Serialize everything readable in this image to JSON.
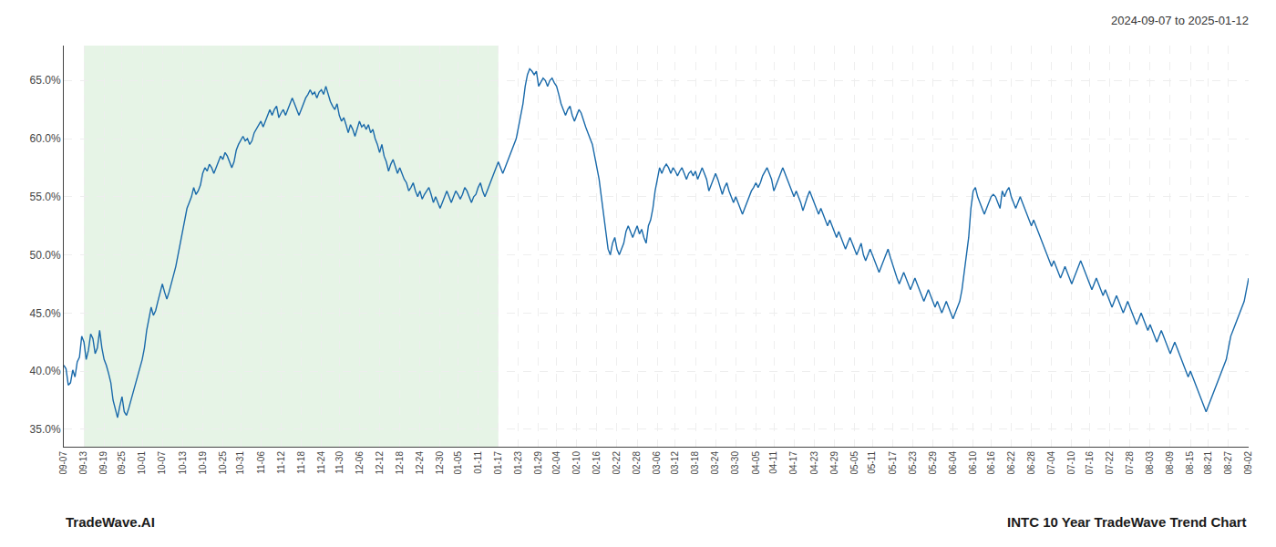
{
  "chart_data": {
    "type": "line",
    "title": "2024-09-07 to 2025-01-12",
    "annotations": [
      "TradeWave.AI",
      "INTC 10 Year TradeWave Trend Chart"
    ],
    "color": "#1a6aaa",
    "grid": true,
    "highlight": {
      "start": "09-13",
      "end": "01-17",
      "color": "#c8e6c8"
    },
    "ylim": [
      33.5,
      68.0
    ],
    "yticks": [
      {
        "value": 35.0,
        "label": "35.0%"
      },
      {
        "value": 40.0,
        "label": "40.0%"
      },
      {
        "value": 45.0,
        "label": "45.0%"
      },
      {
        "value": 50.0,
        "label": "50.0%"
      },
      {
        "value": 55.0,
        "label": "55.0%"
      },
      {
        "value": 60.0,
        "label": "60.0%"
      },
      {
        "value": 65.0,
        "label": "65.0%"
      }
    ],
    "categories": [
      "09-07",
      null,
      null,
      null,
      null,
      null,
      null,
      null,
      null,
      "09-13",
      null,
      null,
      null,
      null,
      null,
      null,
      null,
      null,
      "09-19",
      null,
      null,
      null,
      null,
      null,
      null,
      null,
      "09-25",
      null,
      null,
      null,
      null,
      null,
      null,
      null,
      null,
      "10-01",
      null,
      null,
      null,
      null,
      null,
      null,
      null,
      null,
      "10-07",
      null,
      null,
      null,
      null,
      null,
      null,
      null,
      null,
      "10-13",
      null,
      null,
      null,
      null,
      null,
      null,
      null,
      null,
      "10-19",
      null,
      null,
      null,
      null,
      null,
      null,
      null,
      null,
      "10-25",
      null,
      null,
      null,
      null,
      null,
      null,
      null,
      "10-31",
      null,
      null,
      null,
      null,
      null,
      null,
      null,
      null,
      "11-06",
      null,
      null,
      null,
      null,
      null,
      null,
      null,
      null,
      "11-12",
      null,
      null,
      null,
      null,
      null,
      null,
      null,
      null,
      "11-18",
      null,
      null,
      null,
      null,
      null,
      null,
      null,
      null,
      "11-24",
      null,
      null,
      null,
      null,
      null,
      null,
      null,
      "11-30",
      null,
      null,
      null,
      null,
      null,
      null,
      null,
      null,
      "12-06",
      null,
      null,
      null,
      null,
      null,
      null,
      null,
      null,
      "12-12",
      null,
      null,
      null,
      null,
      null,
      null,
      null,
      null,
      "12-18",
      null,
      null,
      null,
      null,
      null,
      null,
      null,
      null,
      "12-24",
      null,
      null,
      null,
      null,
      null,
      null,
      null,
      null,
      "12-30",
      null,
      null,
      null,
      null,
      null,
      null,
      null,
      "01-05",
      null,
      null,
      null,
      null,
      null,
      null,
      null,
      null,
      "01-11",
      null,
      null,
      null,
      null,
      null,
      null,
      null,
      null,
      "01-17",
      null,
      null,
      null,
      null,
      null,
      null,
      null,
      null,
      "01-23",
      null,
      null,
      null,
      null,
      null,
      null,
      null,
      null,
      "01-29",
      null,
      null,
      null,
      null,
      null,
      null,
      null,
      "02-04",
      null,
      null,
      null,
      null,
      null,
      null,
      null,
      null,
      "02-10",
      null,
      null,
      null,
      null,
      null,
      null,
      null,
      null,
      "02-16",
      null,
      null,
      null,
      null,
      null,
      null,
      null,
      null,
      "02-22",
      null,
      null,
      null,
      null,
      null,
      null,
      null,
      null,
      "02-28",
      null,
      null,
      null,
      null,
      null,
      null,
      null,
      null,
      "03-06",
      null,
      null,
      null,
      null,
      null,
      null,
      null,
      "03-12",
      null,
      null,
      null,
      null,
      null,
      null,
      null,
      null,
      "03-18",
      null,
      null,
      null,
      null,
      null,
      null,
      null,
      null,
      "03-24",
      null,
      null,
      null,
      null,
      null,
      null,
      null,
      null,
      "03-30",
      null,
      null,
      null,
      null,
      null,
      null,
      null,
      null,
      "04-05",
      null,
      null,
      null,
      null,
      null,
      null,
      null,
      "04-11",
      null,
      null,
      null,
      null,
      null,
      null,
      null,
      null,
      "04-17",
      null,
      null,
      null,
      null,
      null,
      null,
      null,
      null,
      "04-23",
      null,
      null,
      null,
      null,
      null,
      null,
      null,
      null,
      "04-29",
      null,
      null,
      null,
      null,
      null,
      null,
      null,
      null,
      "05-05",
      null,
      null,
      null,
      null,
      null,
      null,
      null,
      "05-11",
      null,
      null,
      null,
      null,
      null,
      null,
      null,
      null,
      "05-17",
      null,
      null,
      null,
      null,
      null,
      null,
      null,
      null,
      "05-23",
      null,
      null,
      null,
      null,
      null,
      null,
      null,
      null,
      "05-29",
      null,
      null,
      null,
      null,
      null,
      null,
      null,
      null,
      "06-04",
      null,
      null,
      null,
      null,
      null,
      null,
      null,
      null,
      "06-10",
      null,
      null,
      null,
      null,
      null,
      null,
      null,
      "06-16",
      null,
      null,
      null,
      null,
      null,
      null,
      null,
      null,
      "06-22",
      null,
      null,
      null,
      null,
      null,
      null,
      null,
      null,
      "06-28",
      null,
      null,
      null,
      null,
      null,
      null,
      null,
      null,
      "07-04",
      null,
      null,
      null,
      null,
      null,
      null,
      null,
      null,
      "07-10",
      null,
      null,
      null,
      null,
      null,
      null,
      null,
      "07-16",
      null,
      null,
      null,
      null,
      null,
      null,
      null,
      null,
      "07-22",
      null,
      null,
      null,
      null,
      null,
      null,
      null,
      null,
      "07-28",
      null,
      null,
      null,
      null,
      null,
      null,
      null,
      null,
      "08-03",
      null,
      null,
      null,
      null,
      null,
      null,
      null,
      null,
      "08-09",
      null,
      null,
      null,
      null,
      null,
      null,
      null,
      null,
      "08-15",
      null,
      null,
      null,
      null,
      null,
      null,
      null,
      "08-21",
      null,
      null,
      null,
      null,
      null,
      null,
      null,
      null,
      "08-27",
      null,
      null,
      null,
      null,
      null,
      null,
      null,
      null,
      "09-02"
    ],
    "values": [
      40.5,
      40.2,
      38.8,
      39.0,
      40.1,
      39.5,
      40.8,
      41.2,
      43.0,
      42.5,
      41.0,
      41.8,
      43.2,
      42.8,
      41.5,
      42.0,
      43.5,
      42.0,
      41.0,
      40.5,
      39.8,
      39.0,
      37.5,
      36.8,
      36.0,
      37.0,
      37.8,
      36.5,
      36.2,
      36.8,
      37.5,
      38.0,
      38.8,
      39.5,
      40.2,
      41.0,
      42.0,
      43.5,
      44.5,
      45.5,
      44.8,
      45.2,
      46.0,
      46.8,
      47.5,
      46.8,
      46.2,
      46.8,
      47.5,
      48.2,
      49.0,
      50.0,
      51.0,
      52.0,
      53.0,
      54.0,
      54.5,
      55.0,
      55.8,
      55.2,
      55.5,
      56.0,
      57.0,
      57.5,
      57.2,
      57.8,
      57.5,
      57.0,
      57.5,
      58.0,
      58.5,
      58.2,
      58.8,
      58.5,
      58.0,
      57.5,
      58.0,
      59.0,
      59.5,
      59.8,
      60.2,
      59.8,
      60.0,
      59.5,
      59.8,
      60.5,
      60.8,
      61.2,
      61.5,
      61.0,
      61.5,
      62.0,
      62.5,
      62.0,
      62.5,
      62.8,
      61.8,
      62.2,
      62.5,
      62.0,
      62.5,
      63.0,
      63.5,
      63.0,
      62.5,
      62.0,
      62.5,
      63.0,
      63.5,
      63.8,
      64.2,
      63.8,
      64.0,
      63.5,
      64.0,
      64.2,
      63.8,
      64.5,
      63.8,
      63.2,
      62.8,
      62.5,
      63.0,
      62.0,
      61.5,
      61.8,
      61.2,
      60.5,
      61.2,
      60.8,
      60.2,
      60.8,
      61.5,
      61.0,
      61.2,
      60.8,
      61.2,
      60.5,
      60.8,
      60.0,
      59.5,
      58.8,
      59.5,
      58.5,
      58.0,
      57.2,
      57.8,
      58.2,
      57.5,
      57.0,
      57.5,
      57.0,
      56.5,
      56.2,
      55.5,
      55.8,
      56.2,
      55.5,
      55.0,
      55.5,
      54.8,
      55.2,
      55.5,
      55.8,
      55.2,
      54.5,
      55.0,
      54.5,
      54.0,
      54.5,
      55.0,
      55.5,
      55.0,
      54.5,
      55.0,
      55.5,
      55.2,
      54.8,
      55.2,
      55.8,
      55.5,
      55.0,
      54.5,
      55.0,
      55.2,
      55.8,
      56.2,
      55.5,
      55.0,
      55.5,
      56.0,
      56.5,
      57.0,
      57.5,
      58.0,
      57.5,
      57.0,
      57.5,
      58.0,
      58.5,
      59.0,
      59.5,
      60.0,
      61.0,
      62.0,
      63.0,
      64.5,
      65.5,
      66.0,
      65.8,
      65.5,
      65.8,
      64.5,
      64.8,
      65.2,
      65.0,
      64.5,
      65.0,
      65.2,
      64.8,
      64.5,
      63.8,
      63.0,
      62.5,
      62.0,
      62.5,
      62.8,
      62.0,
      61.5,
      62.0,
      62.5,
      62.2,
      61.5,
      61.0,
      60.5,
      60.0,
      59.5,
      58.5,
      57.5,
      56.5,
      55.0,
      53.5,
      52.0,
      50.5,
      50.0,
      51.0,
      51.5,
      50.5,
      50.0,
      50.5,
      51.0,
      52.0,
      52.5,
      52.0,
      51.5,
      52.0,
      52.5,
      51.8,
      52.2,
      51.5,
      51.0,
      52.5,
      53.0,
      54.0,
      55.5,
      56.5,
      57.5,
      57.0,
      57.5,
      57.8,
      57.5,
      57.0,
      57.5,
      57.2,
      56.8,
      57.2,
      57.5,
      57.0,
      56.5,
      57.0,
      57.2,
      56.8,
      57.2,
      56.5,
      57.0,
      57.5,
      57.0,
      56.5,
      55.5,
      56.0,
      56.5,
      57.0,
      56.5,
      55.8,
      55.2,
      55.8,
      56.2,
      55.5,
      55.0,
      54.5,
      55.0,
      54.5,
      54.0,
      53.5,
      54.0,
      54.5,
      55.0,
      55.5,
      55.8,
      56.2,
      55.8,
      56.2,
      56.8,
      57.2,
      57.5,
      57.0,
      56.5,
      55.5,
      56.0,
      56.5,
      57.0,
      57.5,
      57.0,
      56.5,
      56.0,
      55.5,
      55.0,
      55.5,
      55.0,
      54.5,
      53.8,
      54.5,
      55.0,
      55.5,
      55.0,
      54.5,
      54.0,
      53.5,
      54.0,
      53.5,
      53.0,
      52.5,
      53.0,
      52.5,
      52.0,
      51.5,
      52.0,
      51.5,
      51.0,
      50.5,
      51.0,
      51.5,
      51.0,
      50.5,
      50.0,
      50.5,
      51.0,
      50.0,
      49.5,
      50.0,
      50.5,
      50.0,
      49.5,
      49.0,
      48.5,
      49.0,
      49.5,
      50.0,
      50.5,
      49.8,
      49.2,
      48.5,
      48.0,
      47.5,
      48.0,
      48.5,
      48.0,
      47.5,
      47.0,
      47.5,
      48.0,
      47.5,
      47.0,
      46.5,
      46.0,
      46.5,
      47.0,
      46.5,
      46.0,
      45.5,
      46.0,
      45.5,
      45.0,
      45.5,
      46.0,
      45.5,
      45.0,
      44.5,
      45.0,
      45.5,
      46.0,
      47.0,
      48.5,
      50.0,
      51.5,
      54.0,
      55.5,
      55.8,
      55.0,
      54.5,
      54.0,
      53.5,
      54.0,
      54.5,
      55.0,
      55.2,
      55.0,
      54.5,
      54.0,
      55.5,
      55.0,
      55.5,
      55.8,
      55.0,
      54.5,
      54.0,
      54.5,
      55.0,
      54.5,
      54.0,
      53.5,
      53.0,
      52.5,
      53.0,
      52.5,
      52.0,
      51.5,
      51.0,
      50.5,
      50.0,
      49.5,
      49.0,
      49.5,
      49.0,
      48.5,
      48.0,
      48.5,
      49.0,
      48.5,
      48.0,
      47.5,
      48.0,
      48.5,
      49.0,
      49.5,
      49.0,
      48.5,
      48.0,
      47.5,
      47.0,
      47.5,
      48.0,
      47.5,
      47.0,
      46.5,
      47.0,
      46.5,
      46.0,
      45.5,
      46.0,
      46.5,
      46.0,
      45.5,
      45.0,
      45.5,
      46.0,
      45.5,
      45.0,
      44.5,
      44.0,
      44.5,
      45.0,
      44.5,
      44.0,
      43.5,
      44.0,
      43.5,
      43.0,
      42.5,
      43.0,
      43.5,
      43.0,
      42.5,
      42.0,
      41.5,
      42.0,
      42.5,
      42.0,
      41.5,
      41.0,
      40.5,
      40.0,
      39.5,
      40.0,
      39.5,
      39.0,
      38.5,
      38.0,
      37.5,
      37.0,
      36.5,
      37.0,
      37.5,
      38.0,
      38.5,
      39.0,
      39.5,
      40.0,
      40.5,
      41.0,
      42.0,
      43.0,
      43.5,
      44.0,
      44.5,
      45.0,
      45.5,
      46.0,
      47.0,
      48.0
    ]
  }
}
